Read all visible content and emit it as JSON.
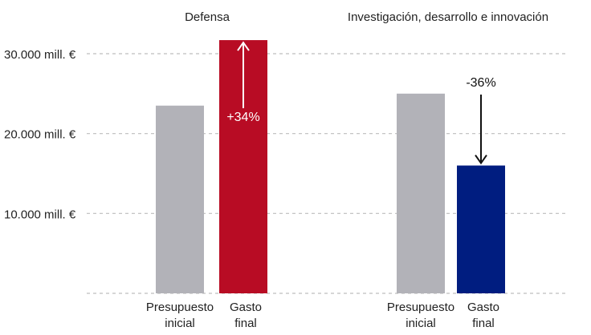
{
  "chart_data": {
    "type": "bar",
    "ylim": [
      0,
      30000
    ],
    "y_ticks": [
      {
        "value": 10000,
        "label": "10.000 mill. €"
      },
      {
        "value": 20000,
        "label": "20.000 mill. €"
      },
      {
        "value": 30000,
        "label": "30.000 mill. €"
      }
    ],
    "grid": true,
    "groups": [
      {
        "title": "Defensa",
        "categories": [
          "Presupuesto\ninicial",
          "Gasto\nfinal"
        ],
        "values": [
          23500,
          31700
        ],
        "colors": [
          "#b2b2b8",
          "#b80c24"
        ],
        "change_label": "+34%",
        "direction": "up",
        "label_color": "#ffffff"
      },
      {
        "title": "Investigación, desarrollo e innovación",
        "categories": [
          "Presupuesto\ninicial",
          "Gasto\nfinal"
        ],
        "values": [
          25000,
          16000
        ],
        "colors": [
          "#b2b2b8",
          "#001d80"
        ],
        "change_label": "-36%",
        "direction": "down",
        "label_color": "#111111"
      }
    ]
  }
}
